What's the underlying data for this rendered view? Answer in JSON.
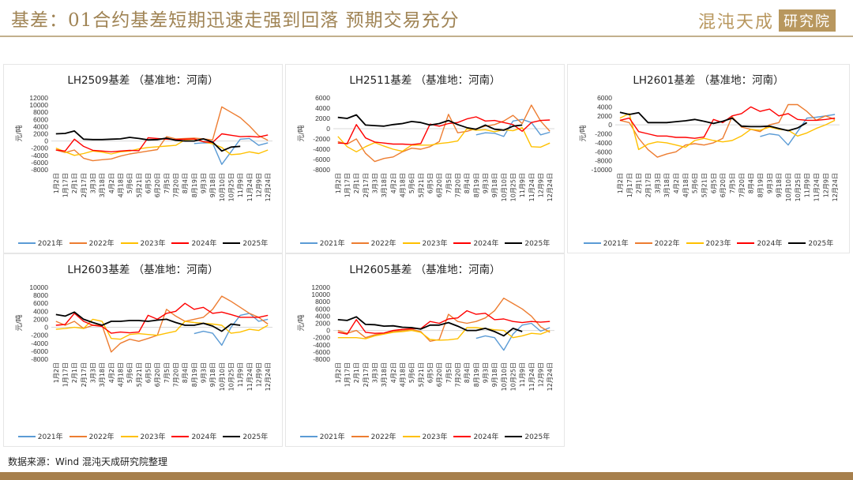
{
  "header": {
    "title": "基差：01合约基差短期迅速走强到回落 预期交易充分",
    "logo_main": "混沌天成",
    "logo_box": "研究院"
  },
  "footer": {
    "source": "数据来源：Wind 混沌天成研究院整理"
  },
  "colors": {
    "2021年": "#5b9bd5",
    "2022年": "#ed7d31",
    "2023年": "#ffc000",
    "2024年": "#ff0000",
    "2025年": "#000000",
    "zero_line": "#d9d9d9",
    "accent": "#a08455"
  },
  "chart_data": [
    {
      "type": "line",
      "title": "LH2509基差 （基准地：河南）",
      "ylabel": "元/吨",
      "xlabel": "",
      "ylim": [
        -8000,
        12000
      ],
      "yticks": [
        12000,
        10000,
        8000,
        6000,
        4000,
        2000,
        0,
        -2000,
        -4000,
        -6000,
        -8000
      ],
      "categories": [
        "1月2日",
        "1月17日",
        "2月1日",
        "2月17日",
        "3月3日",
        "3月18日",
        "4月2日",
        "4月18日",
        "5月6日",
        "5月21日",
        "6月5日",
        "6月20日",
        "7月5日",
        "7月20日",
        "8月4日",
        "8月19日",
        "9月3日",
        "9月18日",
        "10月10日",
        "10月25日",
        "11月9日",
        "11月24日",
        "12月9日",
        "12月24日"
      ],
      "legend": "bottom",
      "series": [
        {
          "name": "2021年",
          "values": [
            null,
            null,
            null,
            null,
            null,
            null,
            null,
            null,
            null,
            null,
            null,
            null,
            null,
            null,
            null,
            -700,
            -500,
            -600,
            -6500,
            -3000,
            500,
            700,
            -1200,
            -500
          ]
        },
        {
          "name": "2022年",
          "values": [
            -2500,
            -3200,
            -2500,
            -4800,
            -5500,
            -5200,
            -5000,
            -4200,
            -3600,
            -3200,
            -2800,
            -2400,
            1200,
            600,
            700,
            800,
            600,
            300,
            9500,
            8000,
            6500,
            4200,
            1500,
            200
          ]
        },
        {
          "name": "2023年",
          "values": [
            -2000,
            -3000,
            -4000,
            -3500,
            -2800,
            -3100,
            -3600,
            -3000,
            -2800,
            -2200,
            -1800,
            -1600,
            -1400,
            -1200,
            300,
            500,
            -200,
            -800,
            -1800,
            -3800,
            -3600,
            -3000,
            -3500,
            -2500
          ]
        },
        {
          "name": "2024年",
          "values": [
            -2500,
            -2800,
            500,
            -1500,
            -2600,
            -2800,
            -3000,
            -2800,
            -2600,
            -2700,
            900,
            700,
            500,
            400,
            500,
            600,
            -200,
            -400,
            2000,
            1600,
            1200,
            1300,
            1100,
            1700
          ]
        },
        {
          "name": "2025年",
          "values": [
            2000,
            2100,
            2800,
            500,
            400,
            400,
            500,
            600,
            1000,
            700,
            300,
            400,
            800,
            200,
            0,
            0,
            600,
            -300,
            -2800,
            -1700,
            -1500,
            null,
            null,
            null
          ]
        }
      ]
    },
    {
      "type": "line",
      "title": "LH2511基差 （基准地：河南）",
      "ylabel": "元/吨",
      "xlabel": "",
      "ylim": [
        -8000,
        6000
      ],
      "yticks": [
        6000,
        4000,
        2000,
        0,
        -2000,
        -4000,
        -6000,
        -8000
      ],
      "categories": [
        "1月2日",
        "1月17日",
        "2月1日",
        "2月17日",
        "3月3日",
        "3月18日",
        "4月2日",
        "4月18日",
        "5月6日",
        "5月21日",
        "6月5日",
        "6月20日",
        "7月5日",
        "7月20日",
        "8月4日",
        "8月19日",
        "9月3日",
        "9月18日",
        "10月10日",
        "10月25日",
        "11月9日",
        "11月24日",
        "12月9日",
        "12月24日"
      ],
      "legend": "bottom",
      "series": [
        {
          "name": "2021年",
          "values": [
            null,
            null,
            null,
            null,
            null,
            null,
            null,
            null,
            null,
            null,
            null,
            null,
            null,
            null,
            null,
            -1200,
            -800,
            -900,
            -1500,
            1500,
            1800,
            1200,
            -1200,
            -700
          ]
        },
        {
          "name": "2022年",
          "values": [
            -2500,
            -3000,
            -2000,
            -4800,
            -6400,
            -5800,
            -5500,
            -4500,
            -3800,
            -4000,
            -3500,
            -2500,
            2800,
            -800,
            -500,
            0,
            500,
            800,
            1500,
            2600,
            1000,
            4600,
            1500,
            -500
          ]
        },
        {
          "name": "2023年",
          "values": [
            -1500,
            -3500,
            -4500,
            -3500,
            -2700,
            -3400,
            -4000,
            -4400,
            -3200,
            -3200,
            -3200,
            -2900,
            -2700,
            -2400,
            0,
            -300,
            -200,
            -600,
            -200,
            -400,
            200,
            -3500,
            -3600,
            -2800
          ]
        },
        {
          "name": "2024年",
          "values": [
            -2800,
            -2900,
            800,
            -1800,
            -2600,
            -2800,
            -3000,
            -3000,
            -3100,
            -2900,
            900,
            500,
            1000,
            1200,
            1900,
            2300,
            1500,
            1600,
            1200,
            800,
            -500,
            1200,
            1600,
            1700
          ]
        },
        {
          "name": "2025年",
          "values": [
            2200,
            2000,
            2700,
            700,
            600,
            500,
            800,
            1000,
            1400,
            1200,
            700,
            1000,
            1600,
            800,
            200,
            -100,
            700,
            -100,
            -300,
            500,
            700,
            null,
            null,
            null
          ]
        }
      ]
    },
    {
      "type": "line",
      "title": "LH2601基差 （基准地：河南）",
      "ylabel": "元/吨",
      "xlabel": "",
      "ylim": [
        -10000,
        6000
      ],
      "yticks": [
        6000,
        4000,
        2000,
        0,
        -2000,
        -4000,
        -6000,
        -8000,
        -10000
      ],
      "categories": [
        "1月2日",
        "1月17日",
        "2月1日",
        "2月17日",
        "3月3日",
        "3月18日",
        "4月2日",
        "4月18日",
        "5月6日",
        "5月21日",
        "6月5日",
        "6月20日",
        "7月5日",
        "7月20日",
        "8月4日",
        "8月19日",
        "9月3日",
        "9月18日",
        "10月10日",
        "10月25日",
        "11月9日",
        "11月24日",
        "12月9日",
        "12月24日"
      ],
      "legend": "bottom",
      "series": [
        {
          "name": "2021年",
          "values": [
            null,
            null,
            null,
            null,
            null,
            null,
            null,
            null,
            null,
            null,
            null,
            null,
            null,
            null,
            null,
            -2600,
            -2000,
            -2300,
            -4500,
            -1500,
            1500,
            1700,
            2000,
            2300
          ]
        },
        {
          "name": "2022年",
          "values": [
            1000,
            500,
            -3000,
            -5500,
            -7200,
            -6500,
            -6000,
            -4500,
            -4200,
            -4500,
            -4000,
            -3000,
            1800,
            -500,
            -1000,
            -1500,
            0,
            500,
            4500,
            4500,
            3000,
            1000,
            2000,
            1200
          ]
        },
        {
          "name": "2023年",
          "values": [
            1500,
            2500,
            -5500,
            -4300,
            -3800,
            -4000,
            -4500,
            -5000,
            -3500,
            -3000,
            -3500,
            -3800,
            -3500,
            -2500,
            -1000,
            -1200,
            -500,
            -1000,
            -1200,
            -2500,
            -1800,
            -800,
            0,
            1000
          ]
        },
        {
          "name": "2024年",
          "values": [
            1000,
            1500,
            -1500,
            -2000,
            -2500,
            -2500,
            -2800,
            -2800,
            -3000,
            -2700,
            1200,
            500,
            2000,
            2500,
            4000,
            3000,
            3500,
            2000,
            2500,
            1200,
            1000,
            1000,
            1200,
            1500
          ]
        },
        {
          "name": "2025年",
          "values": [
            2800,
            2300,
            2700,
            500,
            500,
            500,
            700,
            900,
            1200,
            800,
            300,
            800,
            1500,
            -300,
            -400,
            -400,
            -300,
            -800,
            -1300,
            -700,
            500,
            null,
            null,
            null
          ]
        }
      ]
    },
    {
      "type": "line",
      "title": "LH2603基差 （基准地：河南）",
      "ylabel": "元/吨",
      "xlabel": "",
      "ylim": [
        -8000,
        10000
      ],
      "yticks": [
        10000,
        8000,
        6000,
        4000,
        2000,
        0,
        -2000,
        -4000,
        -6000,
        -8000
      ],
      "categories": [
        "1月2日",
        "1月17日",
        "2月1日",
        "2月17日",
        "3月3日",
        "3月18日",
        "4月2日",
        "4月18日",
        "5月6日",
        "5月21日",
        "6月5日",
        "6月20日",
        "7月5日",
        "7月20日",
        "8月4日",
        "8月19日",
        "9月3日",
        "9月18日",
        "10月10日",
        "10月25日",
        "11月9日",
        "11月24日",
        "12月9日",
        "12月24日"
      ],
      "legend": "bottom",
      "series": [
        {
          "name": "2021年",
          "values": [
            null,
            null,
            null,
            null,
            null,
            null,
            null,
            null,
            null,
            null,
            null,
            null,
            null,
            null,
            null,
            -1600,
            -1000,
            -1500,
            -4500,
            0,
            3000,
            3500,
            1500,
            2000
          ]
        },
        {
          "name": "2022年",
          "values": [
            1500,
            500,
            1500,
            -300,
            500,
            500,
            -6200,
            -4000,
            -3000,
            -3500,
            -2800,
            -2000,
            4500,
            2800,
            1500,
            2000,
            2500,
            4500,
            7800,
            6500,
            5000,
            3500,
            2500,
            800
          ]
        },
        {
          "name": "2023年",
          "values": [
            -500,
            -300,
            0,
            -300,
            2000,
            1500,
            -2800,
            -3000,
            -1800,
            -1600,
            -1800,
            -2000,
            -1500,
            -1000,
            1500,
            1200,
            1000,
            800,
            500,
            -1500,
            -1200,
            -500,
            -800,
            500
          ]
        },
        {
          "name": "2024年",
          "values": [
            500,
            700,
            3500,
            1500,
            500,
            200,
            -1500,
            -1200,
            -1400,
            -1200,
            3000,
            2000,
            3500,
            4000,
            6000,
            4500,
            5000,
            3500,
            3800,
            3200,
            2500,
            2500,
            2500,
            3000
          ]
        },
        {
          "name": "2025年",
          "values": [
            3200,
            2800,
            3800,
            2000,
            1200,
            500,
            1500,
            1500,
            1700,
            1700,
            1500,
            1800,
            2000,
            1200,
            500,
            500,
            1000,
            300,
            -1000,
            800,
            500,
            null,
            null,
            null
          ]
        }
      ]
    },
    {
      "type": "line",
      "title": "LH2605基差 （基准地：河南）",
      "ylabel": "元/吨",
      "xlabel": "",
      "ylim": [
        -8000,
        12000
      ],
      "yticks": [
        12000,
        10000,
        8000,
        6000,
        4000,
        2000,
        0,
        -2000,
        -4000,
        -6000,
        -8000
      ],
      "categories": [
        "1月2日",
        "1月17日",
        "2月1日",
        "2月17日",
        "3月3日",
        "3月18日",
        "4月2日",
        "4月18日",
        "5月6日",
        "5月21日",
        "6月5日",
        "6月20日",
        "7月5日",
        "7月20日",
        "8月4日",
        "8月19日",
        "9月3日",
        "9月18日",
        "10月10日",
        "10月25日",
        "11月9日",
        "11月24日",
        "12月9日",
        "12月24日"
      ],
      "legend": "bottom",
      "series": [
        {
          "name": "2021年",
          "values": [
            null,
            null,
            null,
            null,
            null,
            null,
            null,
            null,
            null,
            null,
            null,
            null,
            null,
            null,
            null,
            -2200,
            -1500,
            -2000,
            -5500,
            -1000,
            1500,
            2000,
            -200,
            800
          ]
        },
        {
          "name": "2022年",
          "values": [
            0,
            -800,
            0,
            -2000,
            -1200,
            -800,
            -300,
            0,
            300,
            -300,
            -3000,
            -2500,
            4500,
            2500,
            2000,
            2500,
            3500,
            5500,
            9000,
            7500,
            6000,
            4000,
            1000,
            -500
          ]
        },
        {
          "name": "2023年",
          "values": [
            -2000,
            -2000,
            -2000,
            -2300,
            -1500,
            -1000,
            -500,
            -300,
            0,
            -500,
            -2500,
            -2700,
            -2600,
            -2300,
            800,
            800,
            500,
            200,
            0,
            -2000,
            -1500,
            -800,
            -1000,
            0
          ]
        },
        {
          "name": "2024年",
          "values": [
            -500,
            -1000,
            3000,
            -500,
            -800,
            -700,
            0,
            300,
            500,
            500,
            2500,
            2000,
            3200,
            3500,
            5500,
            4500,
            4800,
            3000,
            3200,
            2500,
            2200,
            2500,
            2300,
            2500
          ]
        },
        {
          "name": "2025年",
          "values": [
            3000,
            2800,
            3800,
            1700,
            1600,
            1200,
            1300,
            900,
            800,
            400,
            1500,
            1500,
            2200,
            1200,
            0,
            0,
            600,
            -300,
            -1500,
            600,
            -300,
            null,
            null,
            null
          ]
        }
      ]
    }
  ]
}
